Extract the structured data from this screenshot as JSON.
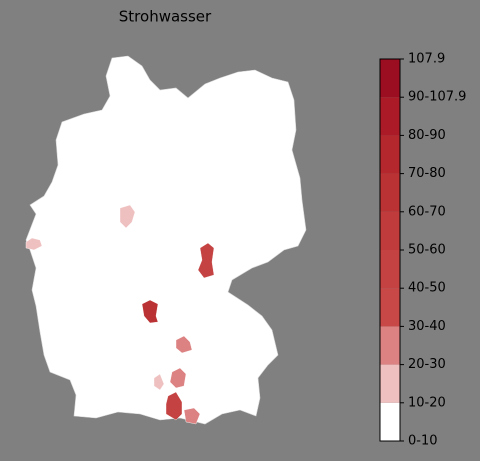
{
  "chart_data": {
    "type": "choropleth",
    "title": "Strohwasser",
    "values": [
      15,
      14,
      42,
      62,
      25,
      22,
      14,
      45,
      24
    ],
    "colorbar": {
      "bin_edges": [
        0,
        10,
        20,
        30,
        40,
        50,
        60,
        70,
        80,
        90,
        107.9
      ],
      "labels": [
        "0-10",
        "10-20",
        "20-30",
        "30-40",
        "40-50",
        "50-60",
        "60-70",
        "70-80",
        "80-90",
        "90-107.9",
        "107.9"
      ],
      "colors": [
        "#ffffff",
        "#efc0c0",
        "#dc8282",
        "#c84848",
        "#c44242",
        "#c03b3b",
        "#bb3234",
        "#b4282d",
        "#aa1b27",
        "#9b0e22"
      ]
    }
  }
}
